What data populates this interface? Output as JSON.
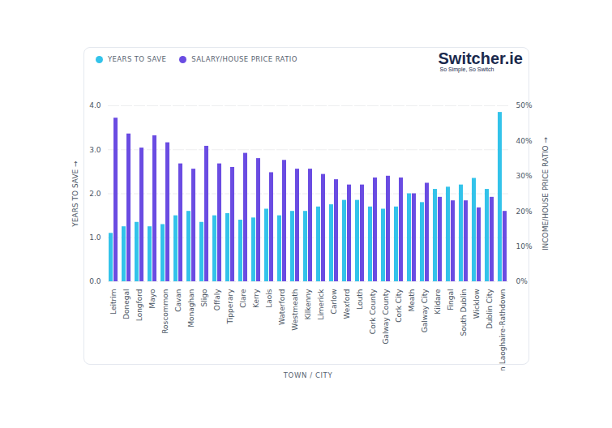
{
  "chart_data": {
    "type": "bar",
    "logo": "Switcher.ie",
    "logo_tagline": "So Simple, So Switch",
    "x_label": "TOWN / CITY",
    "y_label": "YEARS TO SAVE",
    "y2_label": "INCOME/HOUSE PRICE RATIO",
    "categories": [
      "Leitrim",
      "Donegal",
      "Longford",
      "Mayo",
      "Roscommon",
      "Cavan",
      "Monaghan",
      "Sligo",
      "Offaly",
      "Tipperary",
      "Clare",
      "Kerry",
      "Laois",
      "Waterford",
      "Westmeath",
      "Kilkenny",
      "Limerick",
      "Carlow",
      "Wexford",
      "Louth",
      "Cork County",
      "Galway County",
      "Cork City",
      "Meath",
      "Galway City",
      "Kildare",
      "Fingal",
      "South Dublin",
      "Wicklow",
      "Dublin City",
      "Dún Laoghaire-Rathdown"
    ],
    "series": [
      {
        "name": "YEARS TO SAVE",
        "color": "#33c3ea",
        "values": [
          1.1,
          1.25,
          1.35,
          1.25,
          1.3,
          1.5,
          1.6,
          1.35,
          1.5,
          1.55,
          1.4,
          1.45,
          1.65,
          1.5,
          1.6,
          1.6,
          1.7,
          1.75,
          1.85,
          1.85,
          1.7,
          1.65,
          1.7,
          2.0,
          1.8,
          2.1,
          2.15,
          2.2,
          2.35,
          2.1,
          3.85
        ]
      },
      {
        "name": "SALARY/HOUSE PRICE RATIO",
        "color": "#6a4ce2",
        "axis": "y2",
        "values": [
          46.5,
          42,
          38,
          41.5,
          39.5,
          33.5,
          32,
          38.5,
          33.5,
          32.5,
          36.5,
          35,
          31,
          34.5,
          32,
          32,
          30.5,
          29,
          27.5,
          27.5,
          29.5,
          30,
          29.5,
          25,
          28,
          24,
          23,
          23,
          21,
          24,
          20
        ]
      }
    ],
    "ylim": [
      0,
      4
    ],
    "yticks": [
      {
        "value": 0,
        "label": "0.0"
      },
      {
        "value": 1,
        "label": "1.0"
      },
      {
        "value": 2,
        "label": "2.0"
      },
      {
        "value": 3,
        "label": "3.0"
      },
      {
        "value": 4,
        "label": "4.0"
      }
    ],
    "y2lim": [
      0,
      50
    ],
    "y2ticks": [
      {
        "value": 0,
        "label": "0%"
      },
      {
        "value": 10,
        "label": "10%"
      },
      {
        "value": 20,
        "label": "20%"
      },
      {
        "value": 30,
        "label": "30%"
      },
      {
        "value": 40,
        "label": "40%"
      },
      {
        "value": 50,
        "label": "50%"
      }
    ],
    "grid": true,
    "legend": "top-left"
  }
}
